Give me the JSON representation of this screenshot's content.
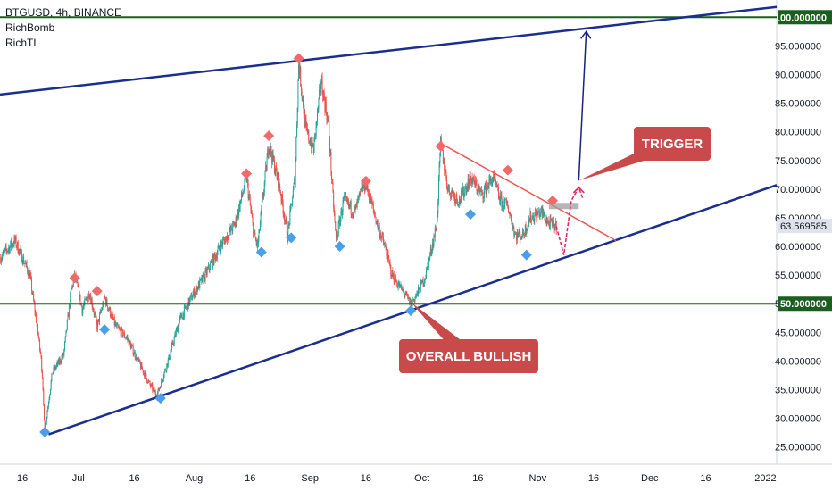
{
  "legend": {
    "symbol": "BTGUSD, 4h, BINANCE",
    "indicator_1": "RichBomb",
    "indicator_2": "RichTL"
  },
  "colors": {
    "bull": "#26a69a",
    "bear": "#ef5350",
    "trendline": "#1a2e8f",
    "level": "#1b5e20",
    "marker_top": "#ef6b6b",
    "marker_bottom": "#4a9fe8",
    "callout": "#c94a4a",
    "current_price_bg": "#e0e3eb",
    "projection": "#e91e63",
    "target_arrow": "#1a237e",
    "zone": "#9e9e9e"
  },
  "chart_data": {
    "type": "candlestick",
    "symbol": "BTGUSD",
    "interval": "4h",
    "exchange": "BINANCE",
    "ylim": [
      22,
      103
    ],
    "y_ticks": [
      25,
      30,
      35,
      40,
      45,
      50,
      55,
      60,
      65,
      70,
      75,
      80,
      85,
      90,
      95
    ],
    "y_tick_labels": [
      "25.000000",
      "30.000000",
      "35.000000",
      "40.000000",
      "45.000000",
      "50.000000",
      "55.000000",
      "60.000000",
      "65.000000",
      "70.000000",
      "75.000000",
      "80.000000",
      "85.000000",
      "90.000000",
      "95.000000"
    ],
    "x_range": [
      "2021-06-10",
      "2022-01-04"
    ],
    "x_ticks": [
      {
        "date": "2021-06-16",
        "label": "16"
      },
      {
        "date": "2021-07-01",
        "label": "Jul"
      },
      {
        "date": "2021-07-16",
        "label": "16"
      },
      {
        "date": "2021-08-01",
        "label": "Aug"
      },
      {
        "date": "2021-08-16",
        "label": "16"
      },
      {
        "date": "2021-09-01",
        "label": "Sep"
      },
      {
        "date": "2021-09-16",
        "label": "16"
      },
      {
        "date": "2021-10-01",
        "label": "Oct"
      },
      {
        "date": "2021-10-16",
        "label": "16"
      },
      {
        "date": "2021-11-01",
        "label": "Nov"
      },
      {
        "date": "2021-11-16",
        "label": "16"
      },
      {
        "date": "2021-12-01",
        "label": "Dec"
      },
      {
        "date": "2021-12-16",
        "label": "16"
      },
      {
        "date": "2022-01-01",
        "label": "2022"
      }
    ],
    "price_path": [
      [
        "2021-06-10",
        58
      ],
      [
        "2021-06-14",
        61
      ],
      [
        "2021-06-18",
        55
      ],
      [
        "2021-06-21",
        41
      ],
      [
        "2021-06-22",
        28
      ],
      [
        "2021-06-24",
        38
      ],
      [
        "2021-06-27",
        41
      ],
      [
        "2021-06-29",
        52
      ],
      [
        "2021-06-30",
        55
      ],
      [
        "2021-07-02",
        49
      ],
      [
        "2021-07-04",
        52
      ],
      [
        "2021-07-06",
        46
      ],
      [
        "2021-07-08",
        51
      ],
      [
        "2021-07-11",
        46
      ],
      [
        "2021-07-14",
        44
      ],
      [
        "2021-07-17",
        40
      ],
      [
        "2021-07-20",
        36
      ],
      [
        "2021-07-22",
        34
      ],
      [
        "2021-07-25",
        40
      ],
      [
        "2021-07-28",
        47
      ],
      [
        "2021-08-01",
        52
      ],
      [
        "2021-08-04",
        55
      ],
      [
        "2021-08-08",
        60
      ],
      [
        "2021-08-12",
        64
      ],
      [
        "2021-08-15",
        72
      ],
      [
        "2021-08-17",
        62
      ],
      [
        "2021-08-18",
        60
      ],
      [
        "2021-08-20",
        72
      ],
      [
        "2021-08-21",
        78
      ],
      [
        "2021-08-24",
        70
      ],
      [
        "2021-08-26",
        62
      ],
      [
        "2021-08-28",
        72
      ],
      [
        "2021-08-29",
        92
      ],
      [
        "2021-08-31",
        80
      ],
      [
        "2021-09-02",
        77
      ],
      [
        "2021-09-04",
        89
      ],
      [
        "2021-09-06",
        81
      ],
      [
        "2021-09-07",
        70
      ],
      [
        "2021-09-08",
        61
      ],
      [
        "2021-09-10",
        68
      ],
      [
        "2021-09-13",
        66
      ],
      [
        "2021-09-15",
        70
      ],
      [
        "2021-09-16",
        71
      ],
      [
        "2021-09-19",
        64
      ],
      [
        "2021-09-21",
        60
      ],
      [
        "2021-09-23",
        55
      ],
      [
        "2021-09-26",
        52
      ],
      [
        "2021-09-28",
        50
      ],
      [
        "2021-09-30",
        52
      ],
      [
        "2021-10-02",
        55
      ],
      [
        "2021-10-04",
        61
      ],
      [
        "2021-10-05",
        64
      ],
      [
        "2021-10-06",
        78
      ],
      [
        "2021-10-08",
        70
      ],
      [
        "2021-10-11",
        68
      ],
      [
        "2021-10-14",
        72
      ],
      [
        "2021-10-17",
        69
      ],
      [
        "2021-10-20",
        72
      ],
      [
        "2021-10-22",
        68
      ],
      [
        "2021-10-24",
        67
      ],
      [
        "2021-10-26",
        62
      ],
      [
        "2021-10-28",
        62
      ],
      [
        "2021-10-30",
        65
      ],
      [
        "2021-11-02",
        66
      ],
      [
        "2021-11-04",
        64
      ],
      [
        "2021-11-06",
        63.57
      ]
    ],
    "current_price": 63.569585,
    "current_price_label": "63.569585",
    "key_levels": [
      {
        "value": 100,
        "label": "100.000000"
      },
      {
        "value": 50,
        "label": "50.000000"
      }
    ],
    "trendlines": [
      {
        "name": "upper channel",
        "from": [
          "2021-06-10",
          86.5
        ],
        "to": [
          "2022-01-04",
          101.8
        ]
      },
      {
        "name": "lower channel",
        "from": [
          "2021-06-23",
          27.2
        ],
        "to": [
          "2022-01-04",
          70.7
        ]
      },
      {
        "name": "descending resistance",
        "from": [
          "2021-10-06",
          78.0
        ],
        "to": [
          "2021-11-22",
          61.0
        ]
      }
    ],
    "marker_tops": [
      [
        "2021-06-30",
        54.5
      ],
      [
        "2021-07-06",
        52.2
      ],
      [
        "2021-08-15",
        72.7
      ],
      [
        "2021-08-21",
        79.3
      ],
      [
        "2021-08-29",
        92.8
      ],
      [
        "2021-09-16",
        71.4
      ],
      [
        "2021-10-06",
        77.5
      ],
      [
        "2021-10-24",
        73.3
      ],
      [
        "2021-11-05",
        68.0
      ]
    ],
    "marker_bottoms": [
      [
        "2021-06-22",
        27.6
      ],
      [
        "2021-07-08",
        45.5
      ],
      [
        "2021-07-23",
        33.5
      ],
      [
        "2021-08-19",
        59.0
      ],
      [
        "2021-08-27",
        61.5
      ],
      [
        "2021-09-09",
        60.0
      ],
      [
        "2021-09-28",
        48.8
      ],
      [
        "2021-10-14",
        65.6
      ],
      [
        "2021-10-29",
        58.5
      ]
    ],
    "zone": {
      "from": "2021-11-04",
      "to": "2021-11-12",
      "low": 66.5,
      "high": 67.6
    },
    "projection_path": [
      [
        "2021-11-06",
        63.5
      ],
      [
        "2021-11-08",
        58.5
      ],
      [
        "2021-11-10",
        68.0
      ],
      [
        "2021-11-12",
        70.3
      ],
      [
        "2021-11-13",
        68.5
      ]
    ],
    "target_arrow": {
      "from": [
        "2021-11-12",
        71.5
      ],
      "to": [
        "2021-11-14",
        97.5
      ]
    },
    "annotations": [
      {
        "text": "TRIGGER",
        "anchor": [
          "2021-11-12",
          71.5
        ]
      },
      {
        "text": "OVERALL BULLISH",
        "anchor": [
          "2021-09-28",
          50.3
        ]
      }
    ]
  }
}
